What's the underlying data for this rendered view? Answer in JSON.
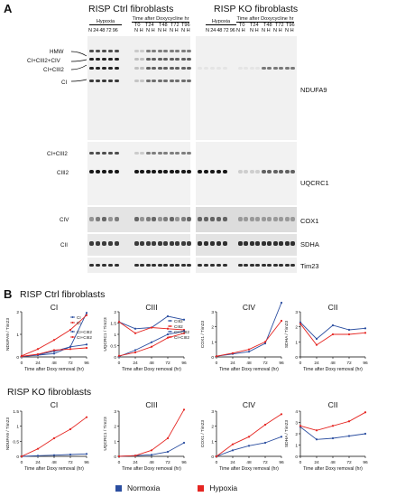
{
  "panel_a": {
    "letter": "A",
    "ctrl_title": "RISP Ctrl fibroblasts",
    "ko_title": "RISP KO fibroblasts",
    "group_hypoxia": "Hypoxia",
    "group_time": "Time after Doxycycline hr",
    "hyp_lanes": "N 24 48 72 96",
    "time_points": [
      "T0",
      "T24",
      "T48",
      "T72",
      "T96"
    ],
    "nh": [
      "N H",
      "N H",
      "N H",
      "N H",
      "N H"
    ],
    "left_labels": [
      "HMW",
      "CI+CIII2+CIV",
      "CI+CIII2",
      "CI",
      "CI+CIII2",
      "CIII2",
      "CIV",
      "CII"
    ],
    "right_labels": [
      "NDUFA9",
      "UQCRC1",
      "COX1",
      "SDHA",
      "Tim23"
    ]
  },
  "panel_b": {
    "letter": "B",
    "ctrl_title": "RISP Ctrl fibroblasts",
    "ko_title": "RISP KO fibroblasts",
    "xlabel": "Time after Doxy removal (hr)",
    "legend_normoxia": "Normoxia",
    "legend_hypoxia": "Hypoxia",
    "colors": {
      "normoxia": "#2b4ea0",
      "hypoxia": "#e52521"
    }
  },
  "chart_data": [
    {
      "type": "line",
      "id": "ctrl-ci",
      "title": "CI",
      "ylabel": "NDUFA9 / Tim23",
      "x": [
        0,
        24,
        48,
        72,
        96
      ],
      "xlim": [
        0,
        96
      ],
      "ylim": [
        0,
        2
      ],
      "yticks": [
        0,
        1,
        2
      ],
      "series": [
        {
          "name": "CI",
          "color": "#2b4ea0",
          "values": [
            0.02,
            0.1,
            0.25,
            0.45,
            1.95
          ]
        },
        {
          "name": "CI",
          "color": "#e52521",
          "values": [
            0.05,
            0.35,
            0.75,
            1.2,
            1.85
          ]
        },
        {
          "name": "CI+CIII2",
          "color": "#2b4ea0",
          "values": [
            0.02,
            0.08,
            0.15,
            0.45,
            0.55
          ]
        },
        {
          "name": "CI+CIII2",
          "color": "#e52521",
          "values": [
            0.03,
            0.12,
            0.3,
            0.35,
            0.4
          ]
        }
      ],
      "legend": [
        {
          "label": "CI",
          "color": "#2b4ea0",
          "pos": "upper"
        },
        {
          "label": "CI",
          "color": "#e52521",
          "pos": "upper"
        },
        {
          "label": "CI+CIII2",
          "color": "#2b4ea0",
          "pos": "middle"
        },
        {
          "label": "CI+CIII2",
          "color": "#e52521",
          "pos": "middle"
        }
      ]
    },
    {
      "type": "line",
      "id": "ctrl-ciii",
      "title": "CIII",
      "ylabel": "UQCRC1 / Tim23",
      "x": [
        0,
        24,
        48,
        72,
        96
      ],
      "xlim": [
        0,
        96
      ],
      "ylim": [
        0,
        2
      ],
      "yticks": [
        0,
        0.5,
        1,
        1.5,
        2
      ],
      "series": [
        {
          "name": "CIII2",
          "color": "#2b4ea0",
          "values": [
            1.55,
            1.25,
            1.3,
            1.8,
            1.65
          ]
        },
        {
          "name": "CIII2",
          "color": "#e52521",
          "values": [
            1.55,
            1.05,
            1.3,
            1.25,
            1.2
          ]
        },
        {
          "name": "CI+CIII2",
          "color": "#2b4ea0",
          "values": [
            0.02,
            0.3,
            0.65,
            1.0,
            1.15
          ]
        },
        {
          "name": "CI+CIII2",
          "color": "#e52521",
          "values": [
            0.05,
            0.2,
            0.45,
            0.85,
            1.05
          ]
        }
      ],
      "legend": [
        {
          "label": "CIII2",
          "color": "#2b4ea0"
        },
        {
          "label": "CIII2",
          "color": "#e52521"
        },
        {
          "label": "CI+CIII2",
          "color": "#2b4ea0"
        },
        {
          "label": "CI+CIII2",
          "color": "#e52521"
        }
      ]
    },
    {
      "type": "line",
      "id": "ctrl-civ",
      "title": "CIV",
      "ylabel": "COX1 / Tim23",
      "x": [
        0,
        24,
        48,
        72,
        96
      ],
      "xlim": [
        0,
        96
      ],
      "ylim": [
        0,
        3
      ],
      "yticks": [
        0,
        1,
        2,
        3
      ],
      "series": [
        {
          "name": "Normoxia",
          "color": "#2b4ea0",
          "values": [
            0.05,
            0.2,
            0.35,
            0.9,
            3.6
          ]
        },
        {
          "name": "Hypoxia",
          "color": "#e52521",
          "values": [
            0.05,
            0.25,
            0.5,
            1.0,
            2.4
          ]
        }
      ]
    },
    {
      "type": "line",
      "id": "ctrl-cii",
      "title": "CII",
      "ylabel": "SDHA / Tim23",
      "x": [
        0,
        24,
        48,
        72,
        96
      ],
      "xlim": [
        0,
        96
      ],
      "ylim": [
        0,
        3
      ],
      "yticks": [
        0,
        1,
        2,
        3
      ],
      "series": [
        {
          "name": "Normoxia",
          "color": "#2b4ea0",
          "values": [
            2.3,
            1.2,
            2.1,
            1.8,
            1.9
          ]
        },
        {
          "name": "Hypoxia",
          "color": "#e52521",
          "values": [
            2.2,
            0.8,
            1.5,
            1.5,
            1.6
          ]
        }
      ]
    },
    {
      "type": "line",
      "id": "ko-ci",
      "title": "CI",
      "ylabel": "NDUFA9 / Tim23",
      "x": [
        0,
        24,
        48,
        72,
        96
      ],
      "xlim": [
        0,
        96
      ],
      "ylim": [
        0,
        1.5
      ],
      "yticks": [
        0,
        0.5,
        1,
        1.5
      ],
      "series": [
        {
          "name": "Normoxia",
          "color": "#2b4ea0",
          "values": [
            0.0,
            0.02,
            0.04,
            0.06,
            0.08
          ]
        },
        {
          "name": "Hypoxia",
          "color": "#e52521",
          "values": [
            0.0,
            0.25,
            0.6,
            0.9,
            1.3
          ]
        }
      ]
    },
    {
      "type": "line",
      "id": "ko-ciii",
      "title": "CIII",
      "ylabel": "UQCRC1 / Tim23",
      "x": [
        0,
        24,
        48,
        72,
        96
      ],
      "xlim": [
        0,
        96
      ],
      "ylim": [
        0,
        3
      ],
      "yticks": [
        0,
        1,
        2,
        3
      ],
      "series": [
        {
          "name": "Normoxia",
          "color": "#2b4ea0",
          "values": [
            0.0,
            0.05,
            0.1,
            0.3,
            0.9
          ]
        },
        {
          "name": "Hypoxia",
          "color": "#e52521",
          "values": [
            0.0,
            0.05,
            0.4,
            1.2,
            3.1
          ]
        }
      ]
    },
    {
      "type": "line",
      "id": "ko-civ",
      "title": "CIV",
      "ylabel": "COX1 / Tim23",
      "x": [
        0,
        24,
        48,
        72,
        96
      ],
      "xlim": [
        0,
        96
      ],
      "ylim": [
        0,
        3
      ],
      "yticks": [
        0,
        1,
        2,
        3
      ],
      "series": [
        {
          "name": "Normoxia",
          "color": "#2b4ea0",
          "values": [
            0.0,
            0.4,
            0.7,
            0.9,
            1.3
          ]
        },
        {
          "name": "Hypoxia",
          "color": "#e52521",
          "values": [
            0.0,
            0.8,
            1.3,
            2.1,
            2.8
          ]
        }
      ]
    },
    {
      "type": "line",
      "id": "ko-cii",
      "title": "CII",
      "ylabel": "SDHA / Tim23",
      "x": [
        0,
        24,
        48,
        72,
        96
      ],
      "xlim": [
        0,
        96
      ],
      "ylim": [
        0,
        4
      ],
      "yticks": [
        0,
        1,
        2,
        3,
        4
      ],
      "series": [
        {
          "name": "Normoxia",
          "color": "#2b4ea0",
          "values": [
            2.6,
            1.5,
            1.6,
            1.8,
            2.0
          ]
        },
        {
          "name": "Hypoxia",
          "color": "#e52521",
          "values": [
            2.7,
            2.3,
            2.7,
            3.1,
            3.9
          ]
        }
      ]
    }
  ]
}
